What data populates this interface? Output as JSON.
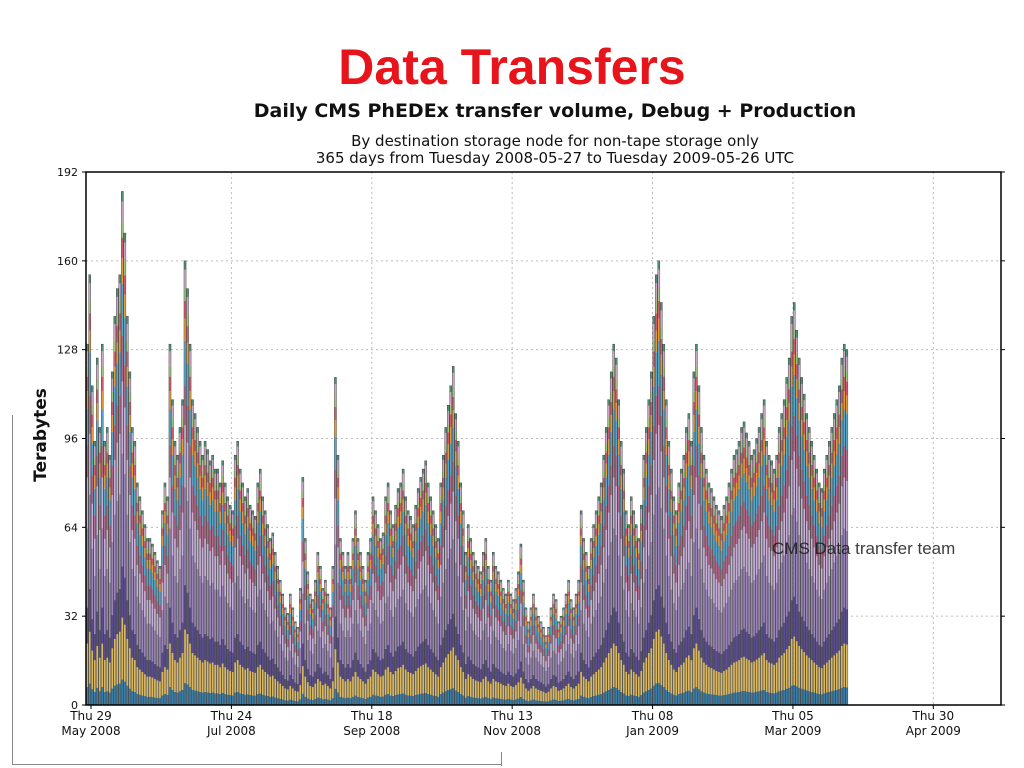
{
  "slide_title": "Data Transfers",
  "chart_data": {
    "type": "bar",
    "stacked": true,
    "title": "Daily CMS PhEDEx transfer volume, Debug + Production",
    "subtitle_lines": [
      "By destination storage node for non-tape storage only",
      "365 days from Tuesday 2008-05-27 to Tuesday 2009-05-26 UTC"
    ],
    "xlabel": "",
    "ylabel": "Terabytes",
    "ylim": [
      0,
      192
    ],
    "y_ticks": [
      "0",
      "32",
      "64",
      "96",
      "128",
      "160",
      "192"
    ],
    "x_ticks": [
      {
        "line1": "Thu 29",
        "line2": "May 2008"
      },
      {
        "line1": "Thu 24",
        "line2": "Jul 2008"
      },
      {
        "line1": "Thu 18",
        "line2": "Sep 2008"
      },
      {
        "line1": "Thu 13",
        "line2": "Nov 2008"
      },
      {
        "line1": "Thu 08",
        "line2": "Jan 2009"
      },
      {
        "line1": "Thu 05",
        "line2": "Mar 2009"
      },
      {
        "line1": "Thu 30",
        "line2": "Apr 2009"
      }
    ],
    "grid": true,
    "legend": "none",
    "series_colors": [
      "#3d7ea6",
      "#d9b865",
      "#5a4e8c",
      "#9a86b6",
      "#c6b0d6",
      "#b06a8a",
      "#5aa6c9",
      "#e29a3f",
      "#cf5c6b",
      "#9fc37c",
      "#c9a6c3",
      "#4f8f74"
    ],
    "daily_totals_tb": [
      130,
      155,
      115,
      95,
      125,
      100,
      130,
      95,
      100,
      90,
      120,
      140,
      150,
      155,
      185,
      170,
      140,
      120,
      100,
      95,
      80,
      75,
      70,
      65,
      60,
      60,
      58,
      55,
      52,
      50,
      70,
      80,
      75,
      130,
      110,
      95,
      90,
      100,
      110,
      160,
      150,
      130,
      110,
      105,
      100,
      95,
      90,
      95,
      92,
      88,
      90,
      85,
      85,
      80,
      88,
      80,
      75,
      72,
      70,
      90,
      95,
      85,
      80,
      75,
      78,
      72,
      70,
      68,
      80,
      85,
      75,
      70,
      65,
      60,
      62,
      55,
      50,
      45,
      40,
      35,
      33,
      40,
      35,
      30,
      28,
      42,
      82,
      60,
      48,
      40,
      38,
      45,
      55,
      50,
      42,
      45,
      40,
      35,
      50,
      118,
      90,
      60,
      55,
      50,
      55,
      50,
      60,
      70,
      60,
      55,
      50,
      45,
      55,
      60,
      75,
      70,
      65,
      60,
      62,
      75,
      80,
      70,
      65,
      72,
      78,
      80,
      85,
      75,
      70,
      68,
      65,
      72,
      78,
      82,
      85,
      88,
      80,
      75,
      70,
      65,
      60,
      80,
      90,
      100,
      108,
      115,
      122,
      105,
      95,
      80,
      70,
      55,
      65,
      60,
      55,
      52,
      50,
      48,
      55,
      60,
      50,
      45,
      55,
      50,
      48,
      45,
      42,
      40,
      45,
      40,
      38,
      42,
      48,
      58,
      45,
      35,
      30,
      35,
      40,
      35,
      32,
      30,
      28,
      25,
      28,
      35,
      40,
      38,
      30,
      32,
      35,
      40,
      45,
      38,
      35,
      40,
      45,
      70,
      60,
      55,
      50,
      60,
      65,
      70,
      75,
      80,
      90,
      100,
      110,
      120,
      130,
      125,
      110,
      95,
      85,
      70,
      65,
      75,
      70,
      65,
      60,
      72,
      90,
      100,
      110,
      120,
      140,
      155,
      160,
      145,
      130,
      110,
      95,
      85,
      75,
      70,
      80,
      85,
      90,
      100,
      105,
      95,
      120,
      130,
      115,
      100,
      90,
      85,
      80,
      78,
      75,
      72,
      70,
      68,
      72,
      75,
      80,
      85,
      90,
      92,
      95,
      100,
      102,
      98,
      95,
      90,
      92,
      96,
      100,
      105,
      110,
      95,
      90,
      88,
      85,
      90,
      100,
      105,
      110,
      118,
      125,
      140,
      145,
      135,
      125,
      118,
      112,
      105,
      100,
      95,
      90,
      85,
      80,
      78,
      85,
      90,
      95,
      100,
      105,
      110,
      115,
      125,
      130,
      128
    ]
  },
  "watermark": "CMS Data transfer team"
}
